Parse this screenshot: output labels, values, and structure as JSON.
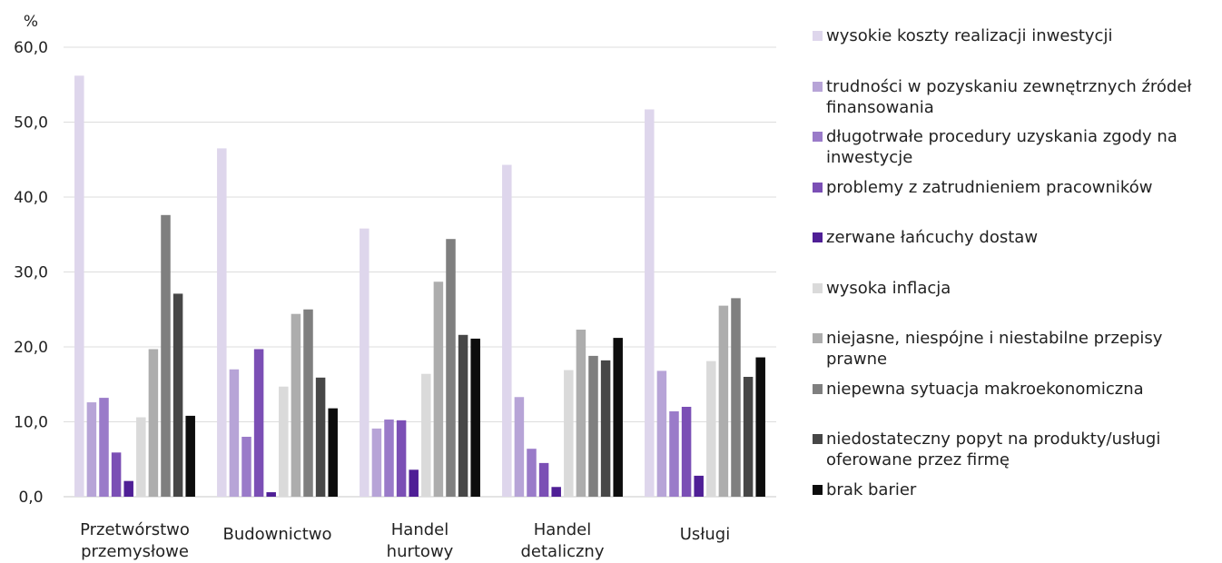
{
  "chart_data": {
    "type": "bar",
    "unit_label": "%",
    "ylim": [
      0,
      60
    ],
    "yticks": [
      "0,0",
      "10,0",
      "20,0",
      "30,0",
      "40,0",
      "50,0",
      "60,0"
    ],
    "grid": true,
    "legend_position": "right",
    "categories": [
      [
        "Przetwórstwo",
        "przemysłowe"
      ],
      [
        "Budownictwo"
      ],
      [
        "Handel",
        "hurtowy"
      ],
      [
        "Handel",
        "detaliczny"
      ],
      [
        "Usługi"
      ]
    ],
    "series": [
      {
        "name": "wysokie koszty realizacji inwestycji",
        "color": "#ded6ec",
        "values": [
          56.2,
          46.5,
          35.8,
          44.3,
          51.7
        ]
      },
      {
        "name": "trudności w pozyskaniu zewnętrznych źródeł finansowania",
        "color": "#b7a4d7",
        "values": [
          12.6,
          17.0,
          9.1,
          13.3,
          16.8
        ]
      },
      {
        "name": "długotrwałe procedury uzyskania zgody na inwestycje",
        "color": "#9a7bc9",
        "values": [
          13.2,
          8.0,
          10.3,
          6.4,
          11.4
        ]
      },
      {
        "name": "problemy z zatrudnieniem pracowników",
        "color": "#7b4fb5",
        "values": [
          5.9,
          19.7,
          10.2,
          4.5,
          12.0
        ]
      },
      {
        "name": "zerwane łańcuchy dostaw",
        "color": "#4f1f96",
        "values": [
          2.1,
          0.6,
          3.6,
          1.3,
          2.8
        ]
      },
      {
        "name": "wysoka inflacja",
        "color": "#dadada",
        "values": [
          10.6,
          14.7,
          16.4,
          16.9,
          18.1
        ]
      },
      {
        "name": "niejasne, niespójne i niestabilne przepisy prawne",
        "color": "#adadad",
        "values": [
          19.7,
          24.4,
          28.7,
          22.3,
          25.5
        ]
      },
      {
        "name": "niepewna sytuacja makroekonomiczna",
        "color": "#7f7f7f",
        "values": [
          37.6,
          25.0,
          34.4,
          18.8,
          26.5
        ]
      },
      {
        "name": "niedostateczny popyt na produkty/usługi oferowane przez firmę",
        "color": "#474747",
        "values": [
          27.1,
          15.9,
          21.6,
          18.2,
          16.0
        ]
      },
      {
        "name": "brak barier",
        "color": "#0d0d0d",
        "values": [
          10.8,
          11.8,
          21.1,
          21.2,
          18.6
        ]
      }
    ]
  }
}
